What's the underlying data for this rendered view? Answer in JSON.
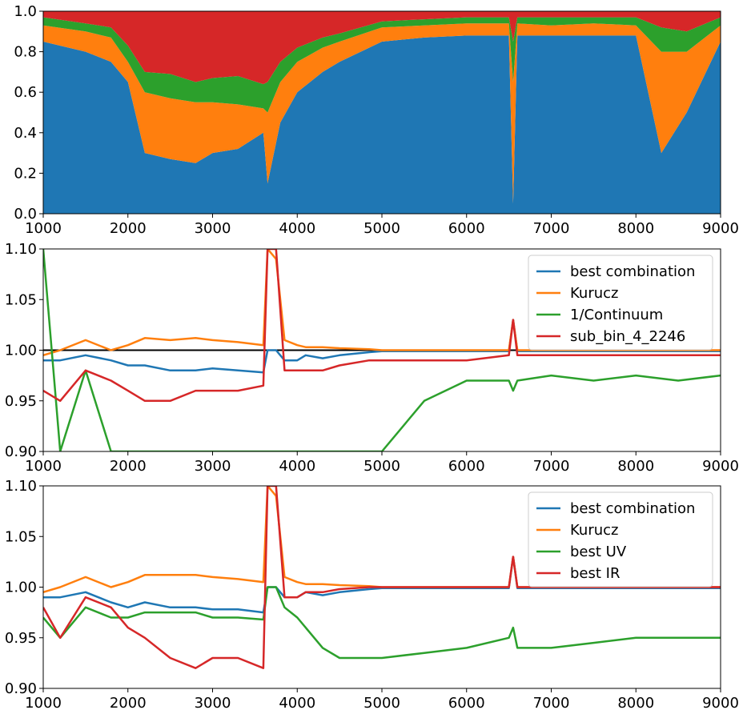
{
  "chart_data": [
    {
      "type": "area",
      "stacked": true,
      "xlim": [
        1000,
        9000
      ],
      "ylim": [
        0,
        1.0
      ],
      "xticks": [
        1000,
        2000,
        3000,
        4000,
        5000,
        6000,
        7000,
        8000,
        9000
      ],
      "yticks": [
        "0.0",
        "0.2",
        "0.4",
        "0.6",
        "0.8",
        "1.0"
      ],
      "grid": false,
      "colors": [
        "#1f77b4",
        "#ff7f0e",
        "#2ca02c",
        "#d62728"
      ],
      "x": [
        1000,
        1500,
        1800,
        2000,
        2200,
        2500,
        2800,
        3000,
        3300,
        3600,
        3650,
        3800,
        4000,
        4300,
        4500,
        5000,
        5500,
        6000,
        6500,
        6550,
        6600,
        7000,
        7500,
        8000,
        8300,
        8600,
        9000
      ],
      "series": [
        {
          "values": [
            0.85,
            0.8,
            0.75,
            0.65,
            0.3,
            0.27,
            0.25,
            0.3,
            0.32,
            0.4,
            0.15,
            0.45,
            0.6,
            0.7,
            0.75,
            0.85,
            0.87,
            0.88,
            0.88,
            0.05,
            0.88,
            0.88,
            0.88,
            0.88,
            0.3,
            0.5,
            0.85
          ]
        },
        {
          "values": [
            0.08,
            0.1,
            0.12,
            0.1,
            0.3,
            0.3,
            0.3,
            0.25,
            0.22,
            0.12,
            0.35,
            0.2,
            0.15,
            0.12,
            0.1,
            0.07,
            0.06,
            0.06,
            0.06,
            0.6,
            0.06,
            0.05,
            0.06,
            0.05,
            0.5,
            0.3,
            0.08
          ]
        },
        {
          "values": [
            0.04,
            0.04,
            0.05,
            0.08,
            0.1,
            0.12,
            0.1,
            0.12,
            0.14,
            0.12,
            0.15,
            0.1,
            0.07,
            0.05,
            0.04,
            0.03,
            0.03,
            0.03,
            0.03,
            0.2,
            0.03,
            0.04,
            0.03,
            0.04,
            0.12,
            0.1,
            0.04
          ]
        },
        {
          "values": [
            0.03,
            0.06,
            0.08,
            0.17,
            0.3,
            0.31,
            0.35,
            0.33,
            0.32,
            0.36,
            0.35,
            0.25,
            0.18,
            0.13,
            0.11,
            0.05,
            0.04,
            0.03,
            0.03,
            0.15,
            0.03,
            0.03,
            0.03,
            0.03,
            0.08,
            0.1,
            0.03
          ]
        }
      ]
    },
    {
      "type": "line",
      "xlim": [
        1000,
        9000
      ],
      "ylim": [
        0.9,
        1.1
      ],
      "xticks": [
        1000,
        2000,
        3000,
        4000,
        5000,
        6000,
        7000,
        8000,
        9000
      ],
      "yticks": [
        "0.90",
        "0.95",
        "1.00",
        "1.05",
        "1.10"
      ],
      "hline": 1.0,
      "legend_position": "top-right",
      "x": [
        1000,
        1200,
        1500,
        1800,
        2000,
        2200,
        2500,
        2800,
        3000,
        3300,
        3600,
        3650,
        3750,
        3850,
        4000,
        4100,
        4300,
        4500,
        4850,
        5000,
        5500,
        6000,
        6500,
        6550,
        6600,
        7000,
        7500,
        8000,
        8500,
        9000
      ],
      "series": [
        {
          "name": "best combination",
          "color": "#1f77b4",
          "values": [
            0.99,
            0.99,
            0.995,
            0.99,
            0.985,
            0.985,
            0.98,
            0.98,
            0.982,
            0.98,
            0.978,
            1.0,
            1.0,
            0.99,
            0.99,
            0.995,
            0.992,
            0.995,
            0.998,
            0.999,
            0.999,
            0.999,
            0.999,
            1.03,
            0.999,
            0.999,
            0.999,
            0.999,
            0.999,
            0.999
          ]
        },
        {
          "name": "Kurucz",
          "color": "#ff7f0e",
          "values": [
            0.995,
            1.0,
            1.01,
            1.0,
            1.005,
            1.012,
            1.01,
            1.012,
            1.01,
            1.008,
            1.005,
            1.1,
            1.09,
            1.01,
            1.005,
            1.003,
            1.003,
            1.002,
            1.001,
            1.0,
            1.0,
            1.0,
            1.0,
            1.03,
            1.0,
            1.0,
            1.0,
            1.0,
            1.0,
            1.0
          ]
        },
        {
          "name": "1/Continuum",
          "color": "#2ca02c",
          "values": [
            1.1,
            0.9,
            0.98,
            0.9,
            0.9,
            0.9,
            0.9,
            0.9,
            0.9,
            0.9,
            0.9,
            0.9,
            0.9,
            0.9,
            0.9,
            0.9,
            0.9,
            0.9,
            0.9,
            0.9,
            0.95,
            0.97,
            0.97,
            0.96,
            0.97,
            0.975,
            0.97,
            0.975,
            0.97,
            0.975
          ]
        },
        {
          "name": "sub_bin_4_2246",
          "color": "#d62728",
          "values": [
            0.96,
            0.95,
            0.98,
            0.97,
            0.96,
            0.95,
            0.95,
            0.96,
            0.96,
            0.96,
            0.965,
            1.1,
            1.1,
            0.98,
            0.98,
            0.98,
            0.98,
            0.985,
            0.99,
            0.99,
            0.99,
            0.99,
            0.995,
            1.03,
            0.995,
            0.995,
            0.995,
            0.995,
            0.995,
            0.995
          ]
        }
      ]
    },
    {
      "type": "line",
      "xlim": [
        1000,
        9000
      ],
      "ylim": [
        0.9,
        1.1
      ],
      "xticks": [
        1000,
        2000,
        3000,
        4000,
        5000,
        6000,
        7000,
        8000,
        9000
      ],
      "yticks": [
        "0.90",
        "0.95",
        "1.00",
        "1.05",
        "1.10"
      ],
      "legend_position": "top-right",
      "x": [
        1000,
        1200,
        1500,
        1800,
        2000,
        2200,
        2500,
        2800,
        3000,
        3300,
        3600,
        3650,
        3750,
        3850,
        4000,
        4100,
        4300,
        4500,
        4850,
        5000,
        5500,
        6000,
        6500,
        6550,
        6600,
        7000,
        7500,
        8000,
        8500,
        9000
      ],
      "series": [
        {
          "name": "best combination",
          "color": "#1f77b4",
          "values": [
            0.99,
            0.99,
            0.995,
            0.985,
            0.98,
            0.985,
            0.98,
            0.98,
            0.978,
            0.978,
            0.975,
            1.0,
            1.0,
            0.99,
            0.99,
            0.995,
            0.992,
            0.995,
            0.998,
            0.999,
            0.999,
            0.999,
            0.999,
            1.03,
            0.999,
            0.999,
            0.999,
            0.999,
            0.999,
            0.999
          ]
        },
        {
          "name": "Kurucz",
          "color": "#ff7f0e",
          "values": [
            0.995,
            1.0,
            1.01,
            1.0,
            1.005,
            1.012,
            1.012,
            1.012,
            1.01,
            1.008,
            1.005,
            1.1,
            1.09,
            1.01,
            1.005,
            1.003,
            1.003,
            1.002,
            1.001,
            1.0,
            1.0,
            1.0,
            1.0,
            1.03,
            1.0,
            1.0,
            1.0,
            1.0,
            1.0,
            1.0
          ]
        },
        {
          "name": "best UV",
          "color": "#2ca02c",
          "values": [
            0.97,
            0.95,
            0.98,
            0.97,
            0.97,
            0.975,
            0.975,
            0.975,
            0.97,
            0.97,
            0.968,
            1.0,
            1.0,
            0.98,
            0.97,
            0.96,
            0.94,
            0.93,
            0.93,
            0.93,
            0.935,
            0.94,
            0.95,
            0.96,
            0.94,
            0.94,
            0.945,
            0.95,
            0.95,
            0.95
          ]
        },
        {
          "name": "best IR",
          "color": "#d62728",
          "values": [
            0.98,
            0.95,
            0.99,
            0.98,
            0.96,
            0.95,
            0.93,
            0.92,
            0.93,
            0.93,
            0.92,
            1.1,
            1.1,
            0.99,
            0.99,
            0.995,
            0.995,
            0.998,
            1.0,
            1.0,
            1.0,
            1.0,
            1.0,
            1.03,
            1.0,
            1.0,
            1.0,
            1.0,
            1.0,
            1.0
          ]
        }
      ]
    }
  ]
}
